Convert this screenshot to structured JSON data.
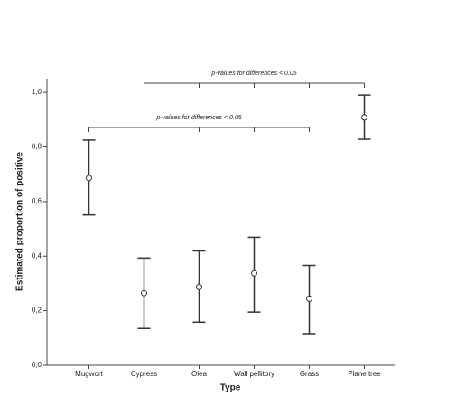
{
  "chart_data": {
    "type": "errorbar",
    "x_label": "Type",
    "y_label": "Estimated proportion of positive",
    "categories": [
      "Mugwort",
      "Cypress",
      "Olea",
      "Wall pellitory",
      "Grass",
      "Plane tree"
    ],
    "values": [
      0.686,
      0.264,
      0.287,
      0.337,
      0.244,
      0.908
    ],
    "lower": [
      0.551,
      0.135,
      0.158,
      0.195,
      0.116,
      0.828
    ],
    "upper": [
      0.825,
      0.393,
      0.419,
      0.469,
      0.366,
      0.99
    ],
    "color": "#333333",
    "ylim": [
      0,
      1.05
    ],
    "yticks": [
      {
        "value": 0,
        "label": "0,0"
      },
      {
        "value": 0.2,
        "label": "0,2"
      },
      {
        "value": 0.4,
        "label": "0,4"
      },
      {
        "value": 0.6,
        "label": "0,6"
      },
      {
        "value": 0.8,
        "label": "0,8"
      },
      {
        "value": 1.0,
        "label": "1,0"
      }
    ],
    "annotations": [
      "p-values for differences < 0.05",
      "p-values for differences < 0.05"
    ]
  }
}
